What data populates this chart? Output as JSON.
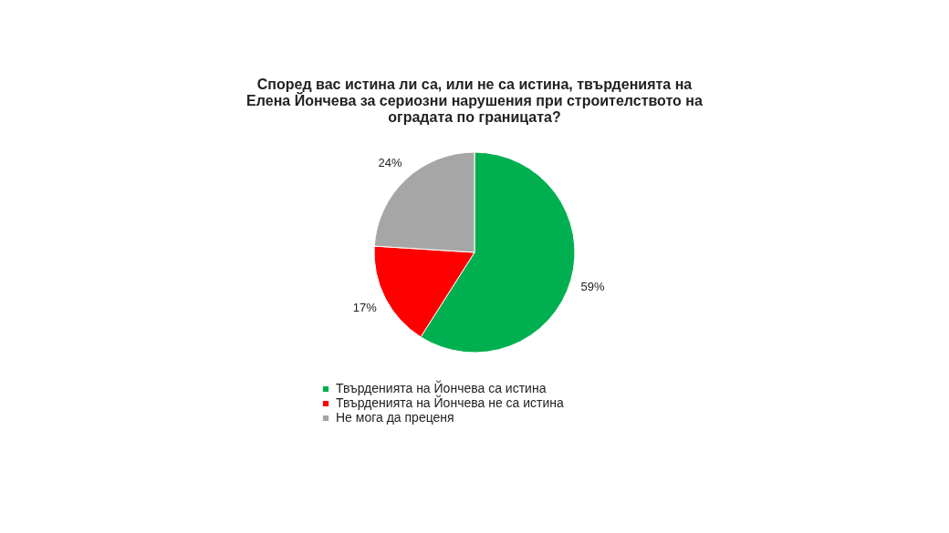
{
  "chart_data": {
    "type": "pie",
    "title": "Според вас истина ли са, или не са истина, твърденията на Елена Йончева за сериозни нарушения при строителството на оградата по границата?",
    "categories": [
      "Твърденията на Йончева са истина",
      "Твърденията на Йончева не са истина",
      "Не мога да преценя"
    ],
    "values": [
      59,
      17,
      24
    ],
    "colors": [
      "#00b050",
      "#ff0000",
      "#a6a6a6"
    ],
    "value_labels": [
      "59%",
      "17%",
      "24%"
    ],
    "legend": "bottom"
  }
}
